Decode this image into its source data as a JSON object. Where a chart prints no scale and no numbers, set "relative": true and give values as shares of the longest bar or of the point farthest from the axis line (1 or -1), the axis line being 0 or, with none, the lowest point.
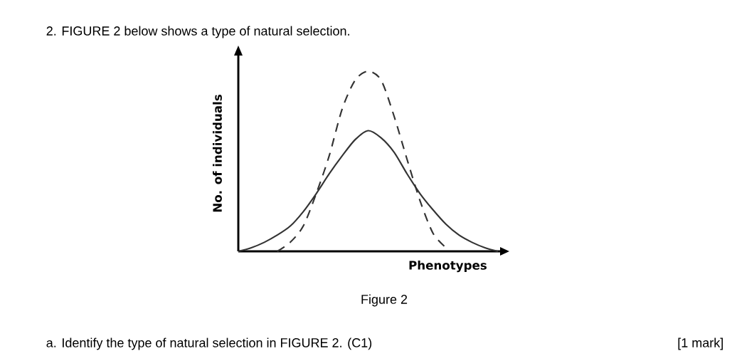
{
  "chart_data": {
    "type": "line",
    "title": "2. FIGURE 2 below shows a type of natural selection.",
    "xlabel": "Phenotypes",
    "ylabel": "No. of individuals",
    "relative": true,
    "marker": "none",
    "annotations": [
      "Figure 2",
      "a. Identify the type of natural selection in FIGURE 2. (C1)",
      "[1 mark]"
    ],
    "categories": [
      null,
      null,
      null,
      null,
      null,
      null,
      null,
      null,
      null,
      null,
      null,
      null,
      null,
      null,
      null,
      null,
      null,
      null,
      null,
      null,
      null
    ],
    "series": [
      {
        "color": "#333333",
        "line_style": "solid",
        "values": [
          0,
          0.02,
          0.05,
          0.09,
          0.14,
          0.22,
          0.32,
          0.43,
          0.53,
          0.62,
          0.67,
          0.63,
          0.55,
          0.43,
          0.32,
          0.23,
          0.15,
          0.09,
          0.05,
          0.02,
          0
        ]
      },
      {
        "color": "#333333",
        "line_style": "dashed",
        "values": [
          null,
          null,
          null,
          0,
          0.05,
          0.14,
          0.32,
          0.53,
          0.79,
          0.95,
          1,
          0.95,
          0.75,
          0.51,
          0.28,
          0.1,
          0.02,
          null,
          null,
          null,
          null
        ]
      }
    ]
  }
}
